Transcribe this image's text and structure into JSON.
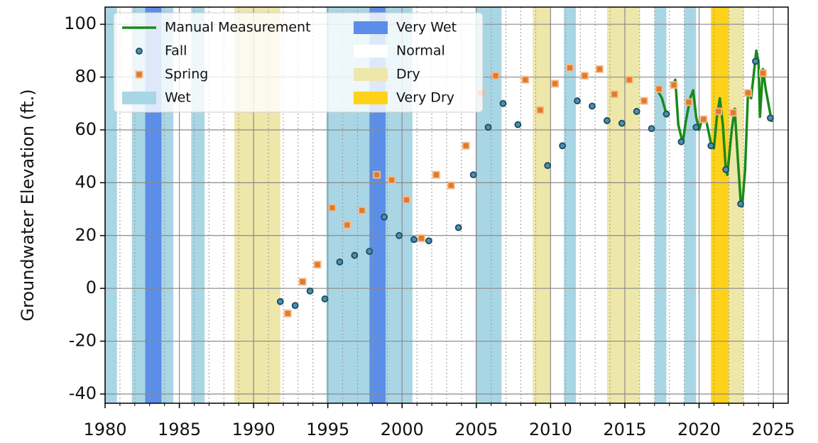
{
  "chart_data": {
    "type": "scatter",
    "ylabel": "Groundwater Elevation (ft.)",
    "xlim": [
      1980,
      2026
    ],
    "ylim": [
      -43.5,
      106.5
    ],
    "xticks": [
      1980,
      1985,
      1990,
      1995,
      2000,
      2005,
      2010,
      2015,
      2020,
      2025
    ],
    "minor_xticks": [
      1981,
      1982,
      1983,
      1984,
      1986,
      1987,
      1988,
      1989,
      1991,
      1992,
      1993,
      1994,
      1996,
      1997,
      1998,
      1999,
      2001,
      2002,
      2003,
      2004,
      2006,
      2007,
      2008,
      2009,
      2011,
      2012,
      2013,
      2014,
      2016,
      2017,
      2018,
      2019,
      2021,
      2022,
      2023,
      2024
    ],
    "yticks": [
      -40,
      -20,
      0,
      20,
      40,
      60,
      80,
      100
    ],
    "grid": true,
    "series": [
      {
        "name": "Manual Measurement",
        "type": "line",
        "color": "#1a8a1a",
        "x": [
          2017.2,
          2017.5,
          2017.8,
          2018.0,
          2018.2,
          2018.4,
          2018.6,
          2018.9,
          2019.1,
          2019.4,
          2019.6,
          2019.8,
          2020.0,
          2020.2,
          2020.5,
          2020.8,
          2021.0,
          2021.2,
          2021.4,
          2021.6,
          2021.8,
          2021.9,
          2022.2,
          2022.4,
          2022.6,
          2022.8,
          2022.9,
          2023.1,
          2023.3,
          2023.5,
          2023.7,
          2023.85,
          2024.0,
          2024.1,
          2024.3,
          2024.5,
          2024.6,
          2024.8,
          2024.9
        ],
        "values": [
          75,
          72,
          66,
          null,
          76,
          79,
          62,
          55,
          63,
          72,
          75,
          65,
          60,
          64,
          63,
          55,
          53,
          65,
          72,
          62,
          45,
          43,
          60,
          68,
          50,
          33,
          31,
          45,
          75,
          72,
          82,
          90,
          86,
          65,
          83,
          75,
          72,
          66,
          63
        ]
      },
      {
        "name": "Fall",
        "type": "scatter",
        "marker": "circle",
        "color": "#4a8fb5",
        "edge": "#1d4a5a",
        "x": [
          1991.8,
          1992.8,
          1993.8,
          1994.8,
          1995.8,
          1996.8,
          1997.8,
          1998.8,
          1999.8,
          2000.8,
          2001.8,
          2003.8,
          2004.8,
          2005.8,
          2006.8,
          2007.8,
          2009.8,
          2010.8,
          2011.8,
          2012.8,
          2013.8,
          2014.8,
          2015.8,
          2016.8,
          2017.8,
          2018.8,
          2019.8,
          2020.8,
          2021.8,
          2022.8,
          2023.8,
          2024.8
        ],
        "values": [
          -5,
          -6.5,
          -1,
          -4,
          10,
          12.5,
          14,
          27,
          20,
          18.5,
          18,
          23,
          43,
          61,
          70,
          62,
          46.5,
          54,
          71,
          69,
          63.5,
          62.5,
          67,
          60.5,
          66,
          55.5,
          61,
          54,
          45,
          32,
          86,
          64.5
        ]
      },
      {
        "name": "Spring",
        "type": "scatter",
        "marker": "square",
        "color": "#e07b28",
        "edge": "#f7b98a",
        "x": [
          1992.3,
          1993.3,
          1994.3,
          1995.3,
          1996.3,
          1997.3,
          1998.3,
          1999.3,
          2000.3,
          2001.3,
          2002.3,
          2003.3,
          2004.3,
          2005.3,
          2006.3,
          2008.3,
          2009.3,
          2010.3,
          2011.3,
          2012.3,
          2013.3,
          2014.3,
          2015.3,
          2016.3,
          2017.3,
          2018.3,
          2019.3,
          2020.3,
          2021.3,
          2022.3,
          2023.3,
          2024.3
        ],
        "values": [
          -9.5,
          2.5,
          9,
          30.5,
          24,
          29.5,
          43,
          41,
          33.5,
          19,
          43,
          39,
          54,
          74,
          80.5,
          79,
          67.5,
          77.5,
          83.5,
          80.5,
          83,
          73.5,
          79,
          71,
          75.5,
          77,
          70.5,
          64,
          67,
          66.5,
          74,
          81.5
        ]
      }
    ],
    "water_year_types": [
      {
        "name": "Wet",
        "color": "#a9d6e5"
      },
      {
        "name": "Very Wet",
        "color": "#5b8ee8"
      },
      {
        "name": "Normal",
        "color": "#ffffff"
      },
      {
        "name": "Dry",
        "color": "#eee7aa"
      },
      {
        "name": "Very Dry",
        "color": "#ffd21a"
      }
    ],
    "periods": [
      {
        "type": "Wet",
        "start": 1980,
        "end": 1980.8
      },
      {
        "type": "Wet",
        "start": 1981.8,
        "end": 1982.7
      },
      {
        "type": "Very Wet",
        "start": 1982.7,
        "end": 1983.8
      },
      {
        "type": "Wet",
        "start": 1983.8,
        "end": 1984.6
      },
      {
        "type": "Wet",
        "start": 1985.8,
        "end": 1986.7
      },
      {
        "type": "Dry",
        "start": 1988.7,
        "end": 1991.8
      },
      {
        "type": "Wet",
        "start": 1994.9,
        "end": 1997.8
      },
      {
        "type": "Very Wet",
        "start": 1997.8,
        "end": 1998.9
      },
      {
        "type": "Wet",
        "start": 1998.9,
        "end": 2000.7
      },
      {
        "type": "Wet",
        "start": 2004.95,
        "end": 2006.7
      },
      {
        "type": "Dry",
        "start": 2008.8,
        "end": 2010.0
      },
      {
        "type": "Wet",
        "start": 2010.9,
        "end": 2011.7
      },
      {
        "type": "Dry",
        "start": 2013.8,
        "end": 2016.0
      },
      {
        "type": "Wet",
        "start": 2017.0,
        "end": 2017.8
      },
      {
        "type": "Wet",
        "start": 2019.0,
        "end": 2019.8
      },
      {
        "type": "Very Dry",
        "start": 2020.8,
        "end": 2022.0
      },
      {
        "type": "Dry",
        "start": 2022.0,
        "end": 2023.0
      }
    ]
  }
}
